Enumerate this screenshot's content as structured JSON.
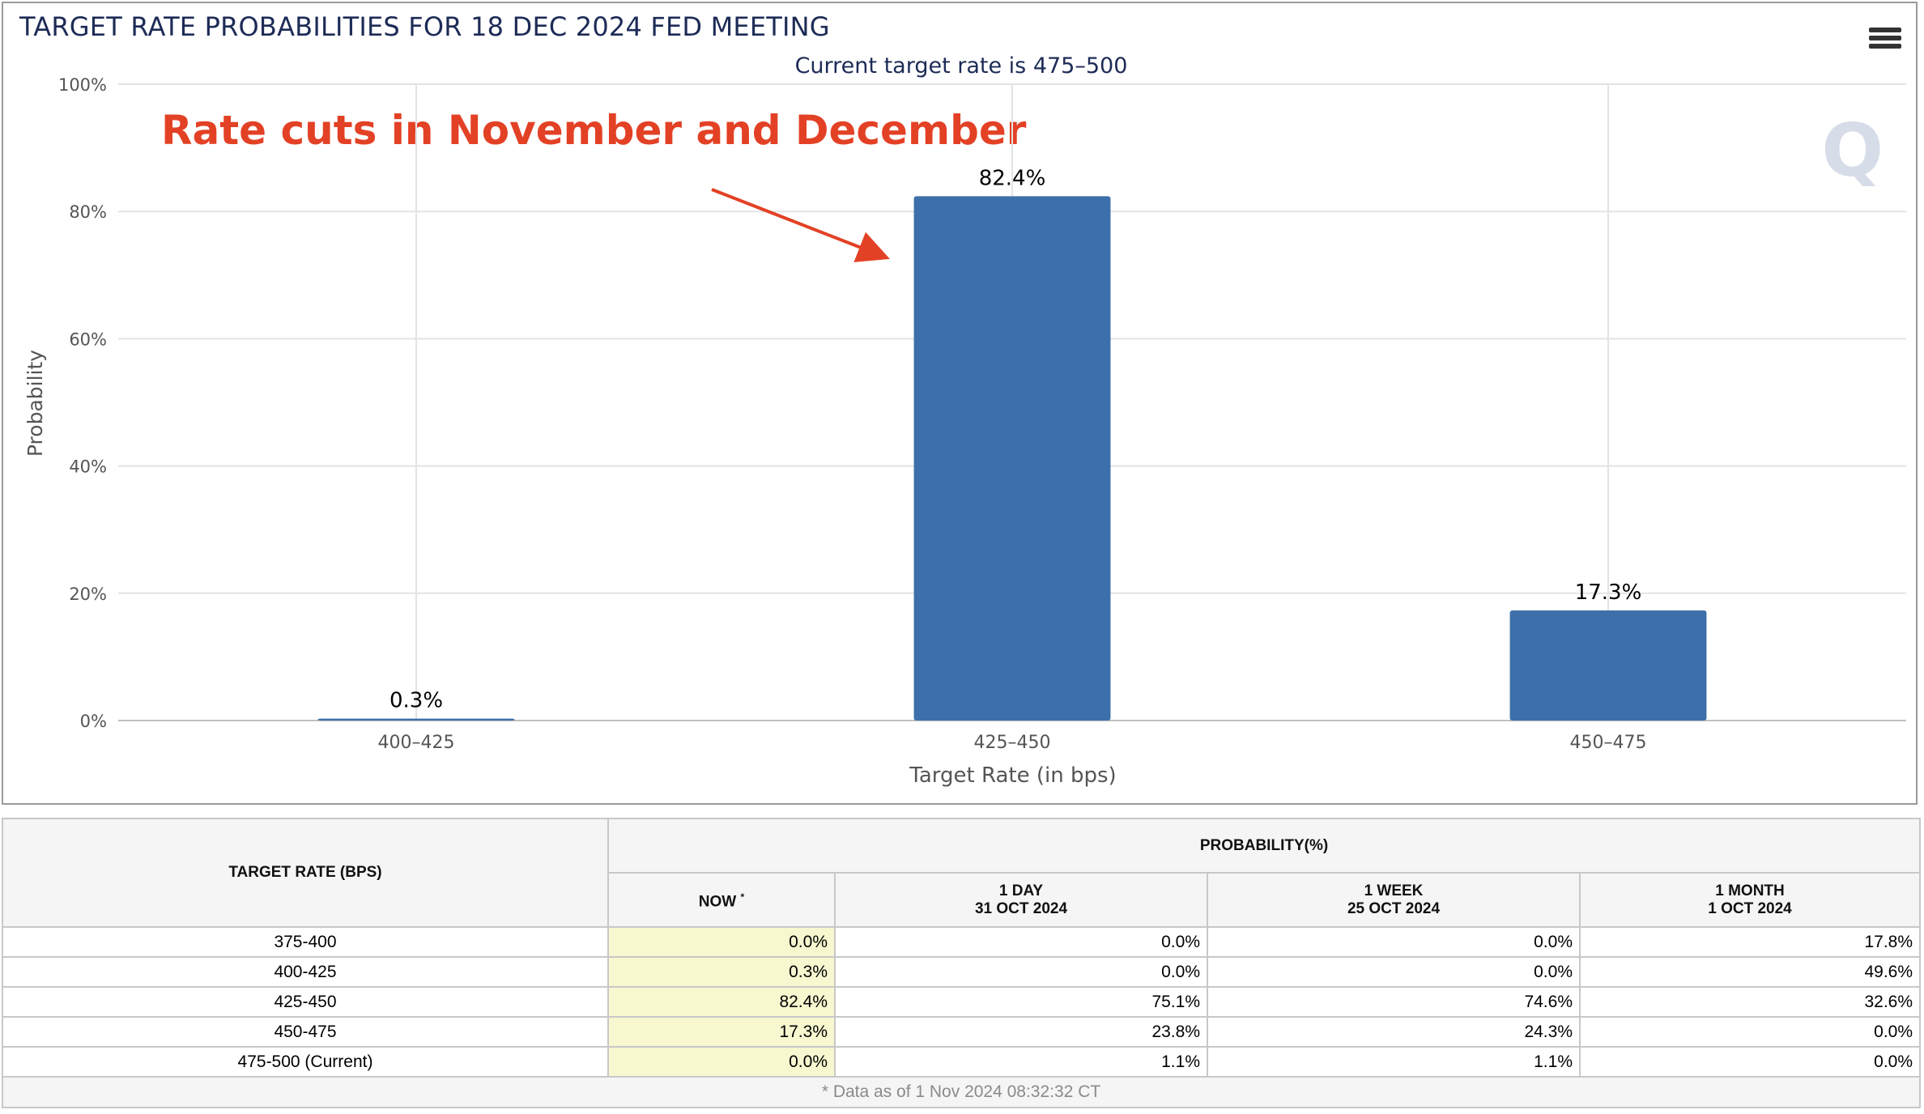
{
  "chart": {
    "title": "TARGET RATE PROBABILITIES FOR 18 DEC 2024 FED MEETING",
    "subtitle": "Current target rate is 475–500",
    "annotation": "Rate cuts in November and December",
    "watermark": "Q",
    "menu_icon": "hamburger-menu-icon"
  },
  "chart_data": {
    "type": "bar",
    "categories": [
      "400–425",
      "425–450",
      "450–475"
    ],
    "values": [
      0.3,
      82.4,
      17.3
    ],
    "data_labels": [
      "0.3%",
      "82.4%",
      "17.3%"
    ],
    "xlabel": "Target Rate (in bps)",
    "ylabel": "Probability",
    "ylim": [
      0,
      100
    ],
    "yticks": [
      "0%",
      "20%",
      "40%",
      "60%",
      "80%",
      "100%"
    ],
    "ytick_values": [
      0,
      20,
      40,
      60,
      80,
      100
    ],
    "grid": true,
    "bar_color": "#3d70aa",
    "annotation_color": "#e34125"
  },
  "table": {
    "col_rate": "TARGET RATE (BPS)",
    "col_probability": "PROBABILITY(%)",
    "sub_now": "NOW",
    "sub_now_mark": "*",
    "sub_1day": "1 DAY",
    "sub_1day_date": "31 OCT 2024",
    "sub_1week": "1 WEEK",
    "sub_1week_date": "25 OCT 2024",
    "sub_1month": "1 MONTH",
    "sub_1month_date": "1 OCT 2024",
    "rows": [
      {
        "rate": "375-400",
        "now": "0.0%",
        "day": "0.0%",
        "week": "0.0%",
        "month": "17.8%"
      },
      {
        "rate": "400-425",
        "now": "0.3%",
        "day": "0.0%",
        "week": "0.0%",
        "month": "49.6%"
      },
      {
        "rate": "425-450",
        "now": "82.4%",
        "day": "75.1%",
        "week": "74.6%",
        "month": "32.6%"
      },
      {
        "rate": "450-475",
        "now": "17.3%",
        "day": "23.8%",
        "week": "24.3%",
        "month": "0.0%"
      },
      {
        "rate": "475-500 (Current)",
        "now": "0.0%",
        "day": "1.1%",
        "week": "1.1%",
        "month": "0.0%"
      }
    ],
    "footer": "* Data as of 1 Nov 2024 08:32:32 CT"
  }
}
